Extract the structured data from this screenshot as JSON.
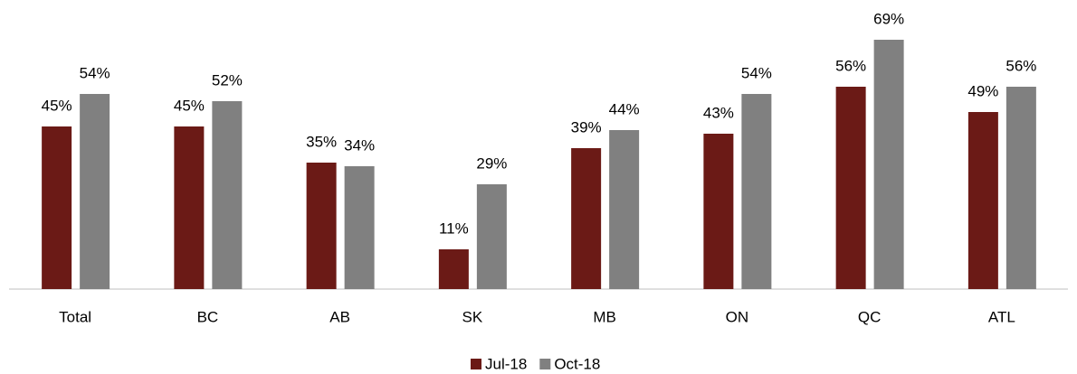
{
  "chart_data": {
    "type": "bar",
    "categories": [
      "Total",
      "BC",
      "AB",
      "SK",
      "MB",
      "ON",
      "QC",
      "ATL"
    ],
    "series": [
      {
        "name": "Jul-18",
        "color": "#6b1a16",
        "values": [
          45,
          45,
          35,
          11,
          39,
          43,
          56,
          49
        ],
        "value_labels": [
          "45%",
          "45%",
          "35%",
          "11%",
          "39%",
          "43%",
          "56%",
          "49%"
        ]
      },
      {
        "name": "Oct-18",
        "color": "#808080",
        "values": [
          54,
          52,
          34,
          29,
          44,
          54,
          69,
          56
        ],
        "value_labels": [
          "54%",
          "52%",
          "34%",
          "29%",
          "44%",
          "54%",
          "69%",
          "56%"
        ]
      }
    ],
    "legend": "bottom"
  }
}
